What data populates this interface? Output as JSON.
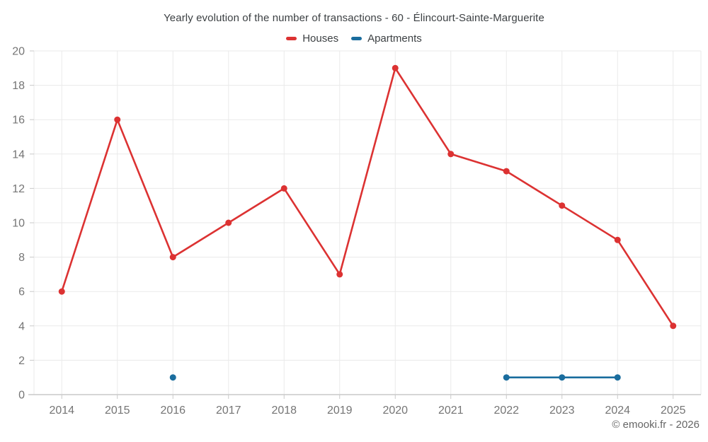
{
  "header": {
    "title": "Yearly evolution of the number of transactions - 60 - Élincourt-Sainte-Marguerite"
  },
  "legend": {
    "items": [
      {
        "label": "Houses",
        "color": "#dc3232"
      },
      {
        "label": "Apartments",
        "color": "#1a6d9e"
      }
    ]
  },
  "footer": {
    "credit": "© emooki.fr - 2026"
  },
  "chart_data": {
    "type": "line",
    "title": "Yearly evolution of the number of transactions - 60 - Élincourt-Sainte-Marguerite",
    "categories": [
      "2014",
      "2015",
      "2016",
      "2017",
      "2018",
      "2019",
      "2020",
      "2021",
      "2022",
      "2023",
      "2024",
      "2025"
    ],
    "series": [
      {
        "name": "Houses",
        "color": "#dc3232",
        "values": [
          6,
          16,
          8,
          10,
          12,
          7,
          19,
          14,
          13,
          11,
          9,
          4
        ]
      },
      {
        "name": "Apartments",
        "color": "#1a6d9e",
        "values": [
          null,
          null,
          1,
          null,
          null,
          null,
          null,
          null,
          1,
          1,
          1,
          null
        ]
      }
    ],
    "xlabel": "",
    "ylabel": "",
    "ylim": [
      0,
      20
    ],
    "ytick_step": 2,
    "grid": true,
    "legend_position": "top",
    "axis_text_color": "#757575",
    "grid_color": "#eaeaea",
    "axis_line_color": "#c9c9c9"
  }
}
